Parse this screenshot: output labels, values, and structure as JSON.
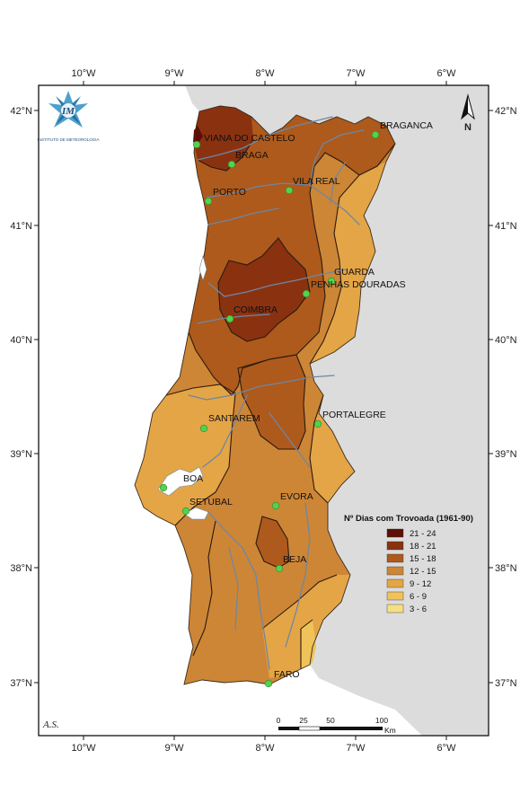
{
  "lon_labels": [
    "10°W",
    "9°W",
    "8°W",
    "7°W",
    "6°W"
  ],
  "lat_labels": [
    "42°N",
    "41°N",
    "40°N",
    "39°N",
    "38°N",
    "37°N"
  ],
  "north_label": "N",
  "author": "A.S.",
  "logo_text": "IM",
  "logo_caption": "INSTITUTO DE METEOROLOGIA",
  "scale": {
    "ticks": [
      "0",
      "25",
      "50",
      "100"
    ],
    "unit": "Km"
  },
  "cities": [
    {
      "name": "VIANA DO CASTELO"
    },
    {
      "name": "BRAGA"
    },
    {
      "name": "PORTO"
    },
    {
      "name": "VILA REAL"
    },
    {
      "name": "BRAGANCA"
    },
    {
      "name": "GUARDA"
    },
    {
      "name": "PENHAS DOURADAS"
    },
    {
      "name": "COIMBRA"
    },
    {
      "name": "SANTAREM"
    },
    {
      "name": "PORTALEGRE"
    },
    {
      "name": "BOA"
    },
    {
      "name": "SETUBAL"
    },
    {
      "name": "EVORA"
    },
    {
      "name": "BEJA"
    },
    {
      "name": "FARO"
    }
  ],
  "legend": {
    "title": "Nº Dias com Trovoada (1961-90)",
    "classes": [
      {
        "label": "21 - 24",
        "color": "#5e0e06"
      },
      {
        "label": "18 - 21",
        "color": "#8a3210"
      },
      {
        "label": "15 - 18",
        "color": "#ad5a1c"
      },
      {
        "label": "12 - 15",
        "color": "#cd8636"
      },
      {
        "label": "9 - 12",
        "color": "#e4a546"
      },
      {
        "label": "6 - 9",
        "color": "#f0c35a"
      },
      {
        "label": "3 - 6",
        "color": "#f6df82"
      }
    ]
  },
  "colors": {
    "spain": "#dcdcdc",
    "sea": "#ffffff",
    "river": "#6f86a4",
    "city_marker": "#52d24f"
  }
}
